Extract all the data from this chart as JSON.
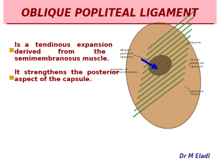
{
  "title": "OBLIQUE POPLITEAL LIGAMENT",
  "title_color": "#8B0000",
  "title_bg_color": "#FFB6C1",
  "title_underline_color": "#8B0000",
  "bg_color": "#FFFFFF",
  "bullet1_line1": "Is  a   tendinous   expansion",
  "bullet1_line2": "derived        from         the",
  "bullet1_line3": "semimembranosus muscle.",
  "bullet2_line1": "It  strengthens  the  posterior",
  "bullet2_line2": "aspect of the capsule.",
  "bullet_color": "#8B0000",
  "bullet_marker_color": "#DAA520",
  "author": "Dr M Eladl",
  "author_color": "#2B2B8B"
}
